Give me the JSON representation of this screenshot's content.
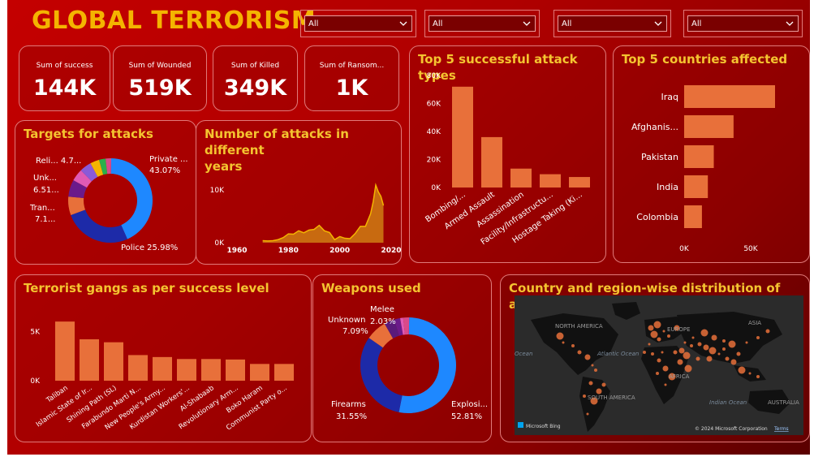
{
  "title": "GLOBAL TERRORISM",
  "slicers": [
    {
      "value": "All"
    },
    {
      "value": "All"
    },
    {
      "value": "All"
    },
    {
      "value": "All"
    }
  ],
  "kpis": [
    {
      "label": "Sum of success",
      "value": "144K"
    },
    {
      "label": "Sum of Wounded",
      "value": "519K"
    },
    {
      "label": "Sum of Killed",
      "value": "349K"
    },
    {
      "label": "Sum of Ransom...",
      "value": "1K"
    }
  ],
  "colors": {
    "accent": "#f4b400",
    "bar": "#e8703a",
    "donut_blue": "#1e88ff",
    "donut_navy": "#1d2aa8"
  },
  "charts": {
    "attack_types": {
      "title": "Top 5 successful attack types",
      "chart_data": {
        "type": "bar",
        "categories": [
          "Bombing/...",
          "Armed Assault",
          "Assassination",
          "Facility/Infrastructu...",
          "Hostage Taking (Ki..."
        ],
        "values": [
          72000,
          36000,
          13500,
          9500,
          7500
        ],
        "ylim": [
          0,
          80000
        ],
        "yticks": [
          "80K",
          "60K",
          "40K",
          "20K",
          "0K"
        ]
      }
    },
    "countries": {
      "title": "Top 5 countries affected",
      "chart_data": {
        "type": "bar",
        "orientation": "horizontal",
        "categories": [
          "Iraq",
          "Afghanis...",
          "Pakistan",
          "India",
          "Colombia"
        ],
        "values": [
          23000,
          12500,
          7500,
          6000,
          4500
        ],
        "xlim": [
          0,
          30000
        ],
        "xticks": [
          "0K",
          "50K"
        ]
      }
    },
    "targets": {
      "title": "Targets for attacks",
      "chart_data": {
        "type": "pie",
        "donut": true,
        "slices": [
          {
            "label": "Private ...",
            "pct": "43.07%",
            "value": 43.07,
            "color": "#1e88ff"
          },
          {
            "label": "Police",
            "pct": "25.98%",
            "value": 25.98,
            "color": "#1d2aa8"
          },
          {
            "label": "Tran...",
            "pct": "7.1...",
            "value": 7.1,
            "color": "#e8703a"
          },
          {
            "label": "Unk...",
            "pct": "6.51...",
            "value": 6.51,
            "color": "#6b1a8a"
          },
          {
            "label": "Reli...",
            "pct": "4.7...",
            "value": 4.7,
            "color": "#e05ab4"
          },
          {
            "label": "",
            "value": 4.5,
            "color": "#8a5ad8"
          },
          {
            "label": "",
            "value": 3.5,
            "color": "#f4b400"
          },
          {
            "label": "",
            "value": 2.5,
            "color": "#2ab04a"
          },
          {
            "label": "",
            "value": 2.14,
            "color": "#d94a8a"
          }
        ]
      }
    },
    "years": {
      "title_line1": "Number of attacks in different",
      "title_line2": "years",
      "chart_data": {
        "type": "area",
        "x": [
          1970,
          1972,
          1974,
          1976,
          1978,
          1980,
          1982,
          1984,
          1986,
          1988,
          1990,
          1992,
          1994,
          1996,
          1998,
          2000,
          2002,
          2004,
          2006,
          2008,
          2010,
          2012,
          2013,
          2014,
          2015,
          2016,
          2017
        ],
        "y": [
          600,
          500,
          600,
          900,
          1500,
          2600,
          2500,
          3500,
          2900,
          3700,
          3900,
          5100,
          3500,
          3000,
          900,
          1800,
          1300,
          1200,
          2700,
          4800,
          4800,
          8500,
          12000,
          16900,
          14900,
          13600,
          10900
        ],
        "xticks": [
          "1960",
          "1980",
          "2000",
          "2020"
        ],
        "yticks": [
          "10K",
          "0K"
        ],
        "xlim": [
          1960,
          2020
        ],
        "ylim": [
          0,
          20000
        ]
      }
    },
    "gangs": {
      "title": "Terrorist gangs as per success level",
      "chart_data": {
        "type": "bar",
        "categories": [
          "Taliban",
          "Islamic State of Ir...",
          "Shining Path (SL)",
          "Farabundo Marti N...",
          "New People's Army...",
          "Kurdistan Workers'...",
          "Al-Shabaab",
          "Revolutionary Arm...",
          "Boko Haram",
          "Communist Party o..."
        ],
        "values": [
          6000,
          4200,
          3900,
          2600,
          2400,
          2200,
          2200,
          2150,
          1700,
          1700
        ],
        "ylim": [
          0,
          7000
        ],
        "yticks": [
          "5K",
          "0K"
        ]
      }
    },
    "weapons": {
      "title": "Weapons used",
      "chart_data": {
        "type": "pie",
        "donut": true,
        "slices": [
          {
            "label": "Explosi...",
            "pct": "52.81%",
            "value": 52.81,
            "color": "#1e88ff"
          },
          {
            "label": "Firearms",
            "pct": "31.55%",
            "value": 31.55,
            "color": "#1d2aa8"
          },
          {
            "label": "Unknown",
            "pct": "7.09%",
            "value": 7.09,
            "color": "#e8703a"
          },
          {
            "label": "",
            "value": 3.5,
            "color": "#5a1a7a"
          },
          {
            "label": "Melee",
            "pct": "2.03%",
            "value": 2.03,
            "color": "#6b1a8a"
          },
          {
            "label": "",
            "value": 1.0,
            "color": "#e05ab4"
          },
          {
            "label": "",
            "value": 2.02,
            "color": "#d94a8a"
          }
        ]
      }
    },
    "map": {
      "title": "Country and region-wise distribution of attacks",
      "labels": {
        "north_america": "NORTH AMERICA",
        "europe": "EUROPE",
        "asia": "ASIA",
        "africa": "AFRICA",
        "south_america": "SOUTH AMERICA",
        "australia": "AUSTRALIA",
        "atlantic": "Atlantic Ocean",
        "indian": "Indian Ocean",
        "ocean_left": "Ocean",
        "bing": "Microsoft Bing",
        "copyright": "© 2024 Microsoft Corporation",
        "terms": "Terms"
      }
    }
  }
}
